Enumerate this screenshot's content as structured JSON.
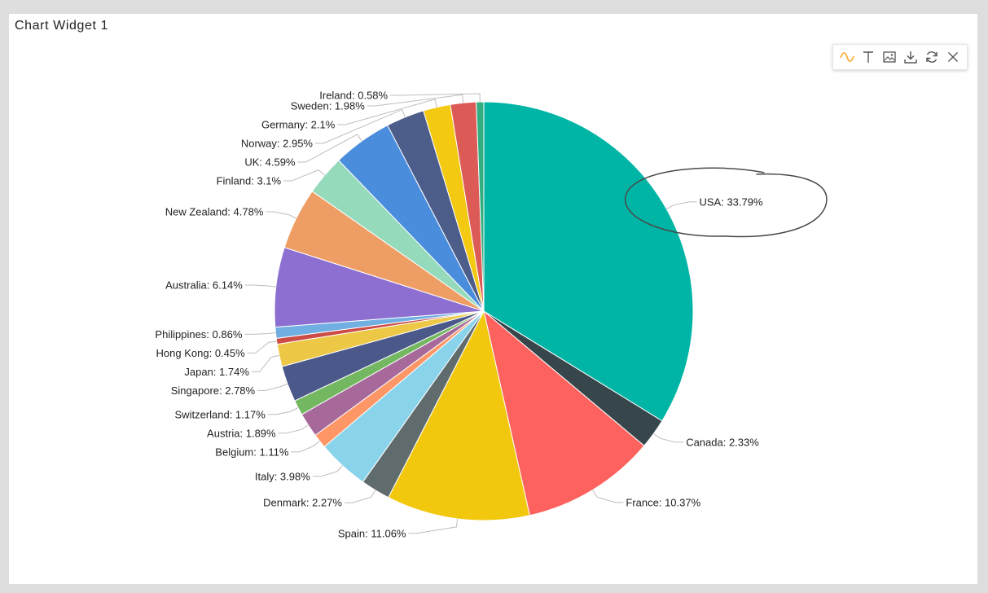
{
  "widget": {
    "title": "Chart Widget 1"
  },
  "toolbar": {
    "icons": [
      "line-chart-icon",
      "text-icon",
      "image-icon",
      "download-icon",
      "refresh-icon",
      "close-icon"
    ],
    "accent_color": "#f5a623"
  },
  "chart_data": {
    "type": "pie",
    "title": "",
    "slices": [
      {
        "label": "USA",
        "value": 33.79,
        "text": "USA: 33.79%",
        "color": "#00b5a5"
      },
      {
        "label": "Canada",
        "value": 2.33,
        "text": "Canada: 2.33%",
        "color": "#36464b"
      },
      {
        "label": "France",
        "value": 10.37,
        "text": "France: 10.37%",
        "color": "#fd625e"
      },
      {
        "label": "Spain",
        "value": 11.06,
        "text": "Spain: 11.06%",
        "color": "#f2c80f"
      },
      {
        "label": "Denmark",
        "value": 2.27,
        "text": "Denmark: 2.27%",
        "color": "#5f6b6d"
      },
      {
        "label": "Italy",
        "value": 3.98,
        "text": "Italy: 3.98%",
        "color": "#8ad4eb"
      },
      {
        "label": "Belgium",
        "value": 1.11,
        "text": "Belgium: 1.11%",
        "color": "#fe9666"
      },
      {
        "label": "Austria",
        "value": 1.89,
        "text": "Austria: 1.89%",
        "color": "#a66999"
      },
      {
        "label": "Switzerland",
        "value": 1.17,
        "text": "Switzerland: 1.17%",
        "color": "#73b761"
      },
      {
        "label": "Singapore",
        "value": 2.78,
        "text": "Singapore: 2.78%",
        "color": "#4a588a"
      },
      {
        "label": "Japan",
        "value": 1.74,
        "text": "Japan: 1.74%",
        "color": "#ecc846"
      },
      {
        "label": "Hong Kong",
        "value": 0.45,
        "text": "Hong Kong: 0.45%",
        "color": "#cd4c46"
      },
      {
        "label": "Philippines",
        "value": 0.86,
        "text": "Philippines: 0.86%",
        "color": "#71afe2"
      },
      {
        "label": "Australia",
        "value": 6.14,
        "text": "Australia: 6.14%",
        "color": "#8d6fd1"
      },
      {
        "label": "New Zealand",
        "value": 4.78,
        "text": "New Zealand: 4.78%",
        "color": "#ee9e64"
      },
      {
        "label": "Finland",
        "value": 3.1,
        "text": "Finland: 3.1%",
        "color": "#95dabb"
      },
      {
        "label": "UK",
        "value": 4.59,
        "text": "UK: 4.59%",
        "color": "#4a8ddc"
      },
      {
        "label": "Norway",
        "value": 2.95,
        "text": "Norway: 2.95%",
        "color": "#4c5d8a"
      },
      {
        "label": "Germany",
        "value": 2.1,
        "text": "Germany: 2.1%",
        "color": "#f3c911"
      },
      {
        "label": "Sweden",
        "value": 1.98,
        "text": "Sweden: 1.98%",
        "color": "#dc5b57"
      },
      {
        "label": "Ireland",
        "value": 0.58,
        "text": "Ireland: 0.58%",
        "color": "#33ae81"
      }
    ],
    "legend": "none",
    "data_labels": "outside-with-leader-lines",
    "annotation": {
      "type": "hand-drawn-circle",
      "target": "USA"
    }
  }
}
